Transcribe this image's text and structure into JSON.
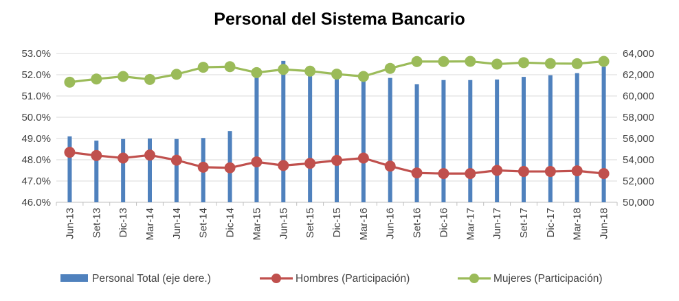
{
  "chart_data": {
    "type": "bar+line",
    "title": "Personal del Sistema Bancario",
    "categories": [
      "Jun-13",
      "Set-13",
      "Dic-13",
      "Mar-14",
      "Jun-14",
      "Set-14",
      "Dic-14",
      "Mar-15",
      "Jun-15",
      "Set-15",
      "Dic-15",
      "Mar-16",
      "Jun-16",
      "Set-16",
      "Dic-16",
      "Mar-17",
      "Jun-17",
      "Set-17",
      "Dic-17",
      "Mar-18",
      "Jun-18"
    ],
    "left_axis": {
      "min": 46.0,
      "max": 53.0,
      "step": 1.0,
      "ticks": [
        "46.0%",
        "47.0%",
        "48.0%",
        "49.0%",
        "50.0%",
        "51.0%",
        "52.0%",
        "53.0%"
      ]
    },
    "right_axis": {
      "min": 50000,
      "max": 64000,
      "step": 2000,
      "ticks": [
        "50,000",
        "52,000",
        "54,000",
        "56,000",
        "58,000",
        "60,000",
        "62,000",
        "64,000"
      ]
    },
    "series": [
      {
        "name": "Personal Total (eje dere.)",
        "kind": "bar",
        "axis": "right",
        "color": "#4f81bd",
        "values": [
          56200,
          55800,
          55950,
          56000,
          55950,
          56050,
          56700,
          62500,
          63300,
          62550,
          62000,
          61850,
          61700,
          61100,
          61500,
          61500,
          61550,
          61800,
          61950,
          62150,
          62750
        ]
      },
      {
        "name": "Hombres (Participación)",
        "kind": "line",
        "axis": "left",
        "color": "#c0504d",
        "values": [
          48.35,
          48.2,
          48.08,
          48.22,
          47.98,
          47.65,
          47.62,
          47.9,
          47.73,
          47.83,
          47.97,
          48.08,
          47.7,
          47.38,
          47.35,
          47.35,
          47.5,
          47.45,
          47.45,
          47.48,
          47.35
        ]
      },
      {
        "name": "Mujeres (Participación)",
        "kind": "line",
        "axis": "left",
        "color": "#9bbb59",
        "values": [
          51.65,
          51.8,
          51.92,
          51.78,
          52.02,
          52.35,
          52.38,
          52.1,
          52.25,
          52.17,
          52.03,
          51.92,
          52.3,
          52.62,
          52.62,
          52.63,
          52.5,
          52.57,
          52.53,
          52.52,
          52.63
        ]
      }
    ],
    "legend_position": "bottom"
  }
}
